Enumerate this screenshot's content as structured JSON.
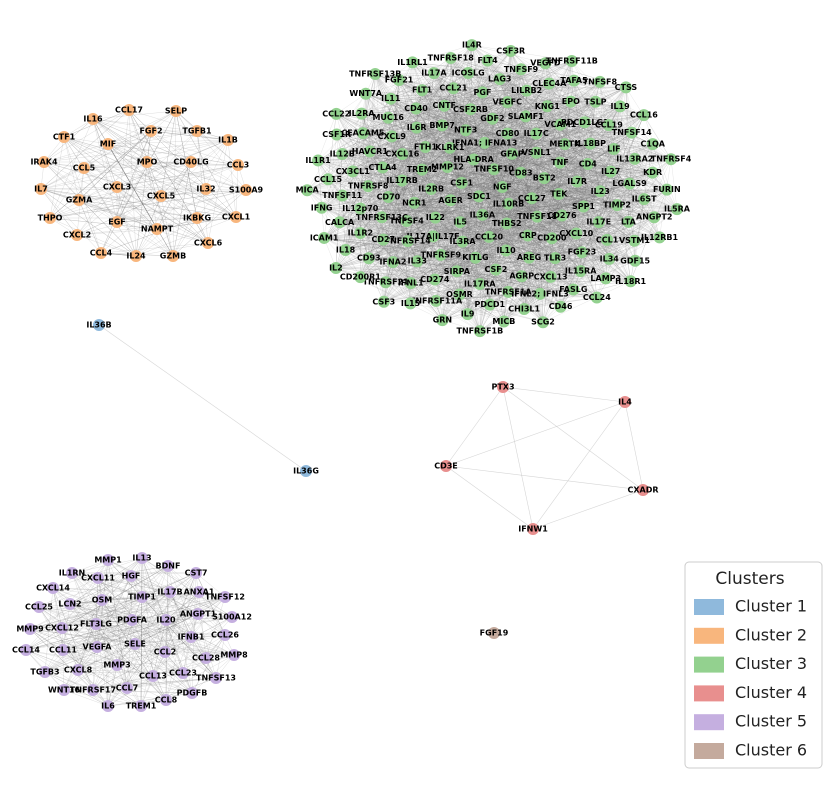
{
  "legend": {
    "title": "Clusters"
  },
  "clusters": [
    {
      "label": "Cluster 1",
      "color": "#8fb9dc",
      "nodes": [
        "IL36B",
        "IL36G"
      ]
    },
    {
      "label": "Cluster 2",
      "color": "#f8b67d",
      "nodes": [
        "IL16",
        "CCL17",
        "SELP",
        "CTF1",
        "FGF2",
        "TGFB1",
        "MIF",
        "IL1B",
        "IRAK4",
        "CCL5",
        "MPO",
        "CD40LG",
        "CCL3",
        "IL7",
        "CXCL3",
        "IL32",
        "S100A9",
        "GZMA",
        "CXCL5",
        "THPO",
        "EGF",
        "IKBKG",
        "CXCL1",
        "NAMPT",
        "CXCL2",
        "CXCL6",
        "CCL4",
        "IL24",
        "GZMB"
      ]
    },
    {
      "label": "Cluster 3",
      "color": "#93d18f",
      "nodes": [
        "NGF",
        "SDC1",
        "TNFSF10",
        "IL10RB",
        "CSF1",
        "CD83",
        "IL36A",
        "HLA-DRA",
        "CCL27",
        "AGER",
        "GFAP",
        "THBS2",
        "MMP12",
        "BST2",
        "IL5",
        "IFNA1; IFNA13",
        "TNFSF18",
        "IL2RB",
        "VSNL1",
        "CCL20",
        "KLRK1",
        "TEK",
        "IL22",
        "CD80",
        "CRP",
        "TREM2",
        "TNF",
        "IL3RA",
        "NTF3",
        "CD276",
        "NCR1",
        "IL17C",
        "IL10",
        "FTH1",
        "IL7R",
        "IL17A|IL17F",
        "GDF2",
        "CD200",
        "IL17RB",
        "MERTK",
        "KITLG",
        "BMP7",
        "SPP1",
        "TNFSF4",
        "SLAMF1",
        "AREG",
        "CXCL16",
        "CD4",
        "TNFRSF9",
        "CSF2RB",
        "CXCL10",
        "CD70",
        "VCAM1",
        "CSF2",
        "IL6R",
        "IL23",
        "TNFRSF14",
        "VEGFC",
        "TLR3",
        "CTLA4",
        "IL18BP",
        "SIRPA",
        "CNTF",
        "IL17E",
        "TNFRSF13C",
        "KNG1",
        "AGRP",
        "CXCL9",
        "IL27",
        "IL33",
        "PGF",
        "FGF23",
        "TNFRSF8",
        "PDCD1LG2",
        "IL17RA",
        "CD40",
        "TIMP2",
        "CD27",
        "LILRB2",
        "CXCL13",
        "HAVCR1",
        "LIF",
        "CD274",
        "CCL21",
        "CCL1",
        "IL12p70",
        "EPO",
        "TNFRSF1A",
        "MUC16",
        "LGALS9",
        "IFNA2",
        "LAG3",
        "IL15RA",
        "CX3CL1",
        "CCL19",
        "OSMR",
        "FLT1",
        "LTA",
        "IL1R2",
        "CLEC4A",
        "IFNL2; IFNL3",
        "CEACAM5",
        "IL13RA2",
        "IFNL1",
        "ICOSLG",
        "IL34",
        "TNFSF11",
        "TSLP",
        "PDCD1",
        "IL11",
        "IL6ST",
        "CD93",
        "TNFSF9",
        "FASLG",
        "IL12B",
        "TNFSF14",
        "TNFRSF11A",
        "IL17A",
        "VSTM1",
        "CALCA",
        "TAFA5",
        "CHI3L1",
        "IL2RA",
        "KDR",
        "TNFRSF21",
        "FLT4",
        "LAMP3",
        "CCL15",
        "IL19",
        "IL9",
        "FGF21",
        "ANGPT2",
        "IL18",
        "VEGFD",
        "CD46",
        "CSF1R",
        "C1QA",
        "IL15",
        "TNFRSF18",
        "GDF15",
        "IFNG",
        "TNFSF8",
        "MICB",
        "WNT7A",
        "FURIN",
        "CD200R1",
        "CSF3R",
        "CCL24",
        "IL1R1",
        "CCL16",
        "GRN",
        "IL1RL1",
        "IL12RB1",
        "ICAM1",
        "TNFRSF11B",
        "SCG2",
        "CCL22",
        "TNFRSF4",
        "CSF3",
        "IL4R",
        "IL18R1",
        "MICA",
        "CTSS",
        "TNFRSF1B",
        "TNFRSF13B",
        "IL5RA",
        "IL2"
      ]
    },
    {
      "label": "Cluster 4",
      "color": "#e88f8e",
      "nodes": [
        "PTX3",
        "IL4",
        "CD3E",
        "CXADR",
        "IFNW1"
      ]
    },
    {
      "label": "Cluster 5",
      "color": "#c5afe0",
      "nodes": [
        "MMP1",
        "IL13",
        "IL1RN",
        "BDNF",
        "CST7",
        "CXCL14",
        "CXCL11",
        "HGF",
        "IL17B",
        "ANXA1",
        "TNFSF12",
        "CCL25",
        "LCN2",
        "OSM",
        "TIMP1",
        "ANGPT1",
        "S100A12",
        "MMP9",
        "CXCL12",
        "FLT3LG",
        "PDGFA",
        "IL20",
        "CCL26",
        "IFNB1",
        "CCL14",
        "CCL11",
        "VEGFA",
        "SELE",
        "CCL2",
        "MMP8",
        "CCL28",
        "TGFB3",
        "CXCL8",
        "MMP3",
        "CCL13",
        "CCL23",
        "TNFSF13",
        "WNT16",
        "TNFRSF17",
        "CCL7",
        "CCL8",
        "PDGFB",
        "IL6",
        "TREM1"
      ]
    },
    {
      "label": "Cluster 6",
      "color": "#c4aa9d",
      "nodes": [
        "FGF19"
      ]
    }
  ]
}
